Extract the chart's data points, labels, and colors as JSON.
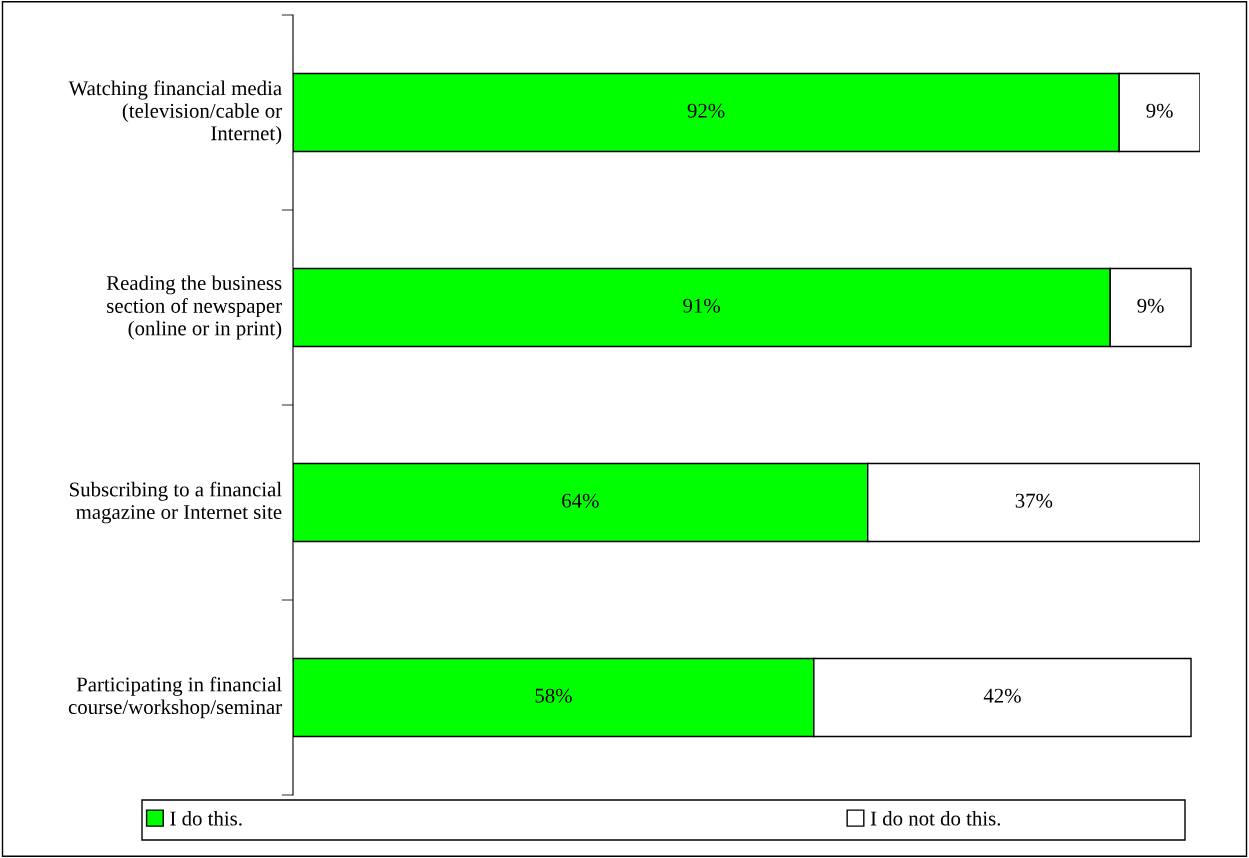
{
  "chart_data": {
    "type": "bar",
    "orientation": "horizontal",
    "stacked": true,
    "legend": "bottom",
    "grid": false,
    "categories": [
      "Watching financial media (television/cable or Internet)",
      "Reading the business section of newspaper (online or in print)",
      "Subscribing to a financial magazine or Internet site",
      "Participating in financial course/workshop/seminar"
    ],
    "series": [
      {
        "name": "I do this.",
        "color": "#00ff00",
        "values": [
          92,
          91,
          64,
          58
        ],
        "value_labels": [
          "92%",
          "91%",
          "64%",
          "58%"
        ]
      },
      {
        "name": "I do not do this.",
        "color": "#ffffff",
        "values": [
          9,
          9,
          37,
          42
        ],
        "value_labels": [
          "9%",
          "9%",
          "37%",
          "42%"
        ]
      }
    ]
  }
}
